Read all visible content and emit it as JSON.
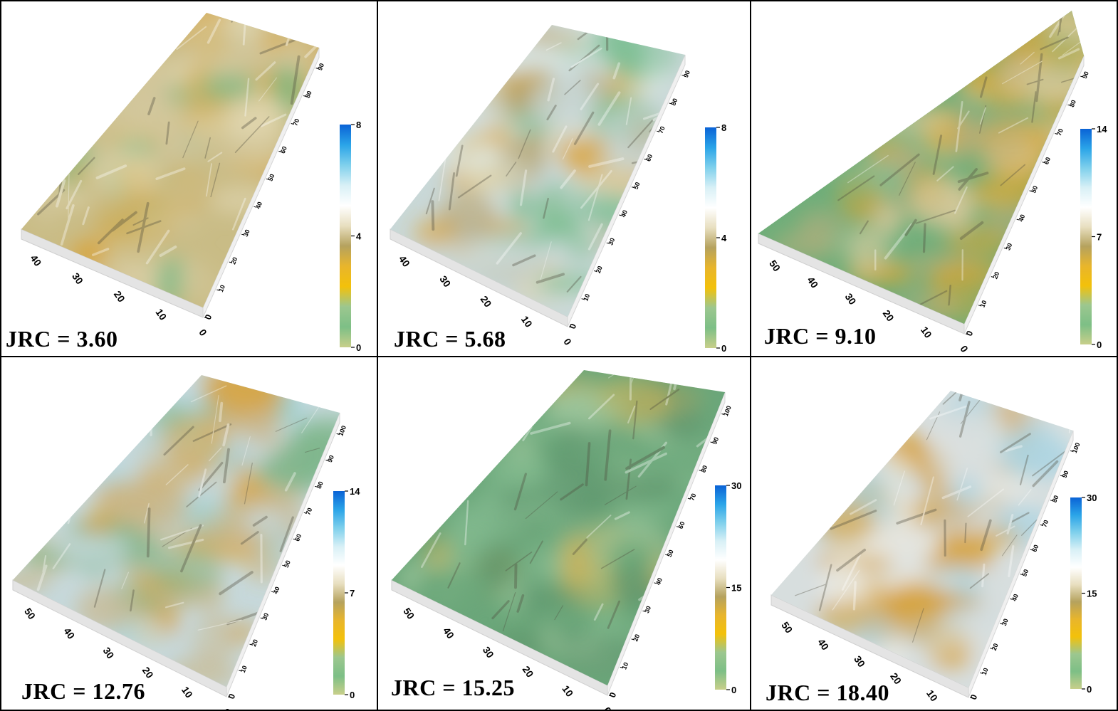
{
  "figure": {
    "layout": {
      "rows": 2,
      "cols": 3
    },
    "colorbar_colors": [
      "#c8cf8a",
      "#7dbf86",
      "#9cc78f",
      "#f3c10a",
      "#e8b52c",
      "#b5a25e",
      "#e8dfc0",
      "#ffffff",
      "#d8f0f6",
      "#7fd0ec",
      "#2aa4e8",
      "#0a63d6"
    ],
    "panels": [
      {
        "label": "JRC = 3.60",
        "colorbar": {
          "max": "8",
          "mid": "4",
          "min": "0"
        },
        "axis_long": [
          "0",
          "10",
          "20",
          "30",
          "40",
          "50",
          "60",
          "70",
          "80",
          "90"
        ],
        "axis_short": [
          "0",
          "10",
          "20",
          "30",
          "40"
        ],
        "palette": [
          "#c9bc86",
          "#d2c79c",
          "#d8a53a",
          "#7fb884",
          "#e0d6b0"
        ]
      },
      {
        "label": "JRC = 5.68",
        "colorbar": {
          "max": "8",
          "mid": "4",
          "min": "0"
        },
        "axis_long": [
          "0",
          "10",
          "20",
          "30",
          "40",
          "50",
          "60",
          "70",
          "80",
          "90"
        ],
        "axis_short": [
          "0",
          "10",
          "20",
          "30",
          "40"
        ],
        "palette": [
          "#c9d8d8",
          "#dfe9e6",
          "#d9a43a",
          "#b3a06a",
          "#7fbf95"
        ]
      },
      {
        "label": "JRC = 9.10",
        "colorbar": {
          "max": "14",
          "mid": "7",
          "min": "0"
        },
        "axis_long": [
          "0",
          "10",
          "20",
          "30",
          "40",
          "50",
          "60",
          "70",
          "80",
          "90"
        ],
        "axis_short": [
          "0",
          "10",
          "20",
          "30",
          "40",
          "50"
        ],
        "palette": [
          "#6fae7a",
          "#88b98a",
          "#d9a52e",
          "#d8c99c",
          "#b7ae7c"
        ]
      },
      {
        "label": "JRC = 12.76",
        "colorbar": {
          "max": "14",
          "mid": "7",
          "min": "0"
        },
        "axis_long": [
          "0",
          "10",
          "20",
          "30",
          "40",
          "50",
          "60",
          "70",
          "80",
          "90",
          "100"
        ],
        "axis_short": [
          "0",
          "10",
          "20",
          "30",
          "40",
          "50"
        ],
        "palette": [
          "#c7d9dc",
          "#d7a23a",
          "#7fb68c",
          "#c8b78c",
          "#a8d6e0"
        ]
      },
      {
        "label": "JRC = 15.25",
        "colorbar": {
          "max": "30",
          "mid": "15",
          "min": "0"
        },
        "axis_long": [
          "0",
          "10",
          "20",
          "30",
          "40",
          "50",
          "60",
          "70",
          "80",
          "90",
          "100"
        ],
        "axis_short": [
          "0",
          "10",
          "20",
          "30",
          "40",
          "50"
        ],
        "palette": [
          "#6ba77a",
          "#82b98e",
          "#c6b25c",
          "#5e946c",
          "#9cc59b"
        ]
      },
      {
        "label": "JRC = 18.40",
        "colorbar": {
          "max": "30",
          "mid": "15",
          "min": "0"
        },
        "axis_long": [
          "0",
          "10",
          "20",
          "30",
          "40",
          "50",
          "60",
          "70",
          "80",
          "90",
          "100"
        ],
        "axis_short": [
          "0",
          "10",
          "20",
          "30",
          "40",
          "50"
        ],
        "palette": [
          "#d7dede",
          "#c6b48a",
          "#d6a23a",
          "#eaeae4",
          "#a9d4e2"
        ]
      }
    ]
  }
}
